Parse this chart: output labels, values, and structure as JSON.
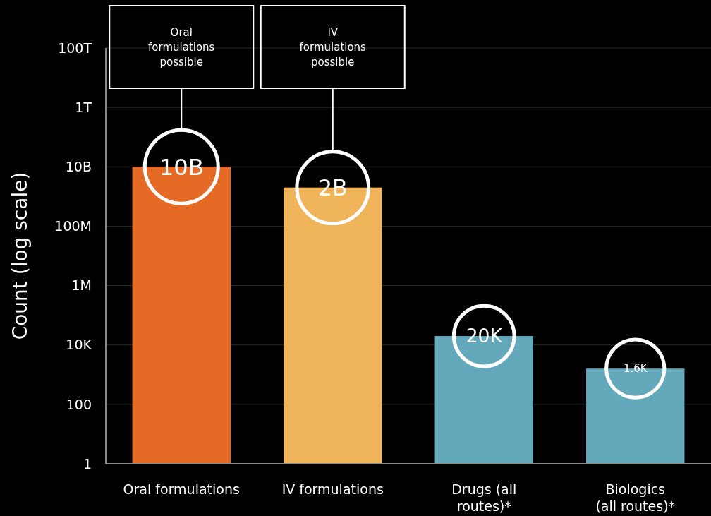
{
  "chart_data": {
    "type": "bar",
    "ylabel": "Count (log scale)",
    "categories": [
      "Oral formulations",
      "IV formulations",
      "Drugs (all routes)*",
      "Biologics (all routes)*"
    ],
    "values": [
      10000000000,
      2000000000,
      20000,
      1600
    ],
    "colors": [
      "#e56a25",
      "#f0b45a",
      "#64a8bb",
      "#64a8bb"
    ],
    "value_labels": [
      "10B",
      "2B",
      "20K",
      "1.6K"
    ],
    "log": true,
    "grid": "y",
    "ylim": [
      1,
      100000000000000
    ],
    "yticks": [
      1,
      100,
      {
        "value": 10000,
        "label": "10K"
      },
      {
        "value": 1000000,
        "label": "1M"
      },
      {
        "value": 100000000,
        "label": "100M"
      },
      {
        "value": 10000000000,
        "label": "10B"
      },
      {
        "value": 1000000000000,
        "label": "1T"
      },
      {
        "value": 100000000000000,
        "label": "100T"
      }
    ],
    "annotations": [
      "Oral formulations possible",
      "IV formulations possible"
    ]
  }
}
